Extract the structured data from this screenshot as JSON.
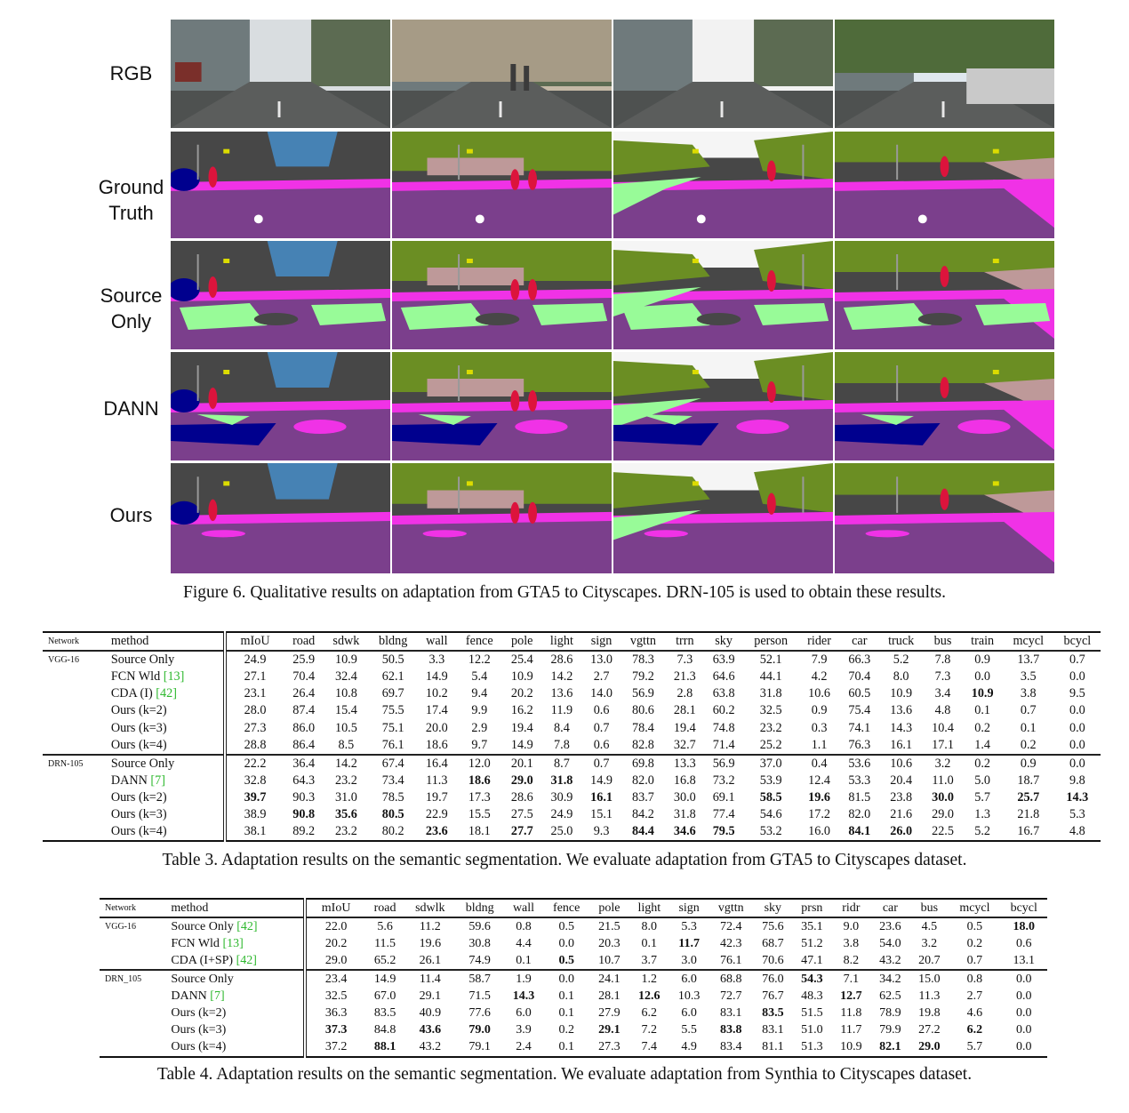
{
  "figure": {
    "row_labels": [
      [
        "RGB"
      ],
      [
        "Ground",
        "Truth"
      ],
      [
        "Source",
        "Only"
      ],
      [
        "DANN"
      ],
      [
        "Ours"
      ]
    ],
    "caption": "Figure 6. Qualitative results on adaptation from GTA5 to Cityscapes. DRN-105 is used to obtain these results.",
    "palette": {
      "road": "#7b3f8c",
      "sidewalk": "#f032e6",
      "building": "#474747",
      "vegetation": "#6b8e23",
      "sky": "#4682b4",
      "person": "#dc143c",
      "car": "#00008e",
      "terrain": "#98fb98",
      "fence": "#be9999",
      "pole": "#999999",
      "sign": "#dcdc00",
      "light": "#faaa1e"
    }
  },
  "table3": {
    "caption": "Table 3. Adaptation results on the semantic segmentation. We evaluate adaptation from GTA5 to Cityscapes dataset.",
    "headers": [
      "Network",
      "method",
      "mIoU",
      "road",
      "sdwk",
      "bldng",
      "wall",
      "fence",
      "pole",
      "light",
      "sign",
      "vgttn",
      "trrn",
      "sky",
      "person",
      "rider",
      "car",
      "truck",
      "bus",
      "train",
      "mcycl",
      "bcycl"
    ],
    "groups": [
      {
        "network": "VGG-16",
        "rows": [
          {
            "method": "Source Only",
            "cite": "",
            "values": [
              "24.9",
              "25.9",
              "10.9",
              "50.5",
              "3.3",
              "12.2",
              "25.4",
              "28.6",
              "13.0",
              "78.3",
              "7.3",
              "63.9",
              "52.1",
              "7.9",
              "66.3",
              "5.2",
              "7.8",
              "0.9",
              "13.7",
              "0.7"
            ],
            "bold": []
          },
          {
            "method": "FCN Wld ",
            "cite": "[13]",
            "values": [
              "27.1",
              "70.4",
              "32.4",
              "62.1",
              "14.9",
              "5.4",
              "10.9",
              "14.2",
              "2.7",
              "79.2",
              "21.3",
              "64.6",
              "44.1",
              "4.2",
              "70.4",
              "8.0",
              "7.3",
              "0.0",
              "3.5",
              "0.0"
            ],
            "bold": []
          },
          {
            "method": "CDA (I) ",
            "cite": "[42]",
            "values": [
              "23.1",
              "26.4",
              "10.8",
              "69.7",
              "10.2",
              "9.4",
              "20.2",
              "13.6",
              "14.0",
              "56.9",
              "2.8",
              "63.8",
              "31.8",
              "10.6",
              "60.5",
              "10.9",
              "3.4",
              "10.9",
              "3.8",
              "9.5"
            ],
            "bold": [
              17
            ]
          },
          {
            "method": "Ours (k=2)",
            "cite": "",
            "values": [
              "28.0",
              "87.4",
              "15.4",
              "75.5",
              "17.4",
              "9.9",
              "16.2",
              "11.9",
              "0.6",
              "80.6",
              "28.1",
              "60.2",
              "32.5",
              "0.9",
              "75.4",
              "13.6",
              "4.8",
              "0.1",
              "0.7",
              "0.0"
            ],
            "bold": []
          },
          {
            "method": "Ours (k=3)",
            "cite": "",
            "values": [
              "27.3",
              "86.0",
              "10.5",
              "75.1",
              "20.0",
              "2.9",
              "19.4",
              "8.4",
              "0.7",
              "78.4",
              "19.4",
              "74.8",
              "23.2",
              "0.3",
              "74.1",
              "14.3",
              "10.4",
              "0.2",
              "0.1",
              "0.0"
            ],
            "bold": []
          },
          {
            "method": "Ours (k=4)",
            "cite": "",
            "values": [
              "28.8",
              "86.4",
              "8.5",
              "76.1",
              "18.6",
              "9.7",
              "14.9",
              "7.8",
              "0.6",
              "82.8",
              "32.7",
              "71.4",
              "25.2",
              "1.1",
              "76.3",
              "16.1",
              "17.1",
              "1.4",
              "0.2",
              "0.0"
            ],
            "bold": []
          }
        ]
      },
      {
        "network": "DRN-105",
        "rows": [
          {
            "method": "Source Only",
            "cite": "",
            "values": [
              "22.2",
              "36.4",
              "14.2",
              "67.4",
              "16.4",
              "12.0",
              "20.1",
              "8.7",
              "0.7",
              "69.8",
              "13.3",
              "56.9",
              "37.0",
              "0.4",
              "53.6",
              "10.6",
              "3.2",
              "0.2",
              "0.9",
              "0.0"
            ],
            "bold": []
          },
          {
            "method": "DANN ",
            "cite": "[7]",
            "values": [
              "32.8",
              "64.3",
              "23.2",
              "73.4",
              "11.3",
              "18.6",
              "29.0",
              "31.8",
              "14.9",
              "82.0",
              "16.8",
              "73.2",
              "53.9",
              "12.4",
              "53.3",
              "20.4",
              "11.0",
              "5.0",
              "18.7",
              "9.8"
            ],
            "bold": [
              5,
              6,
              7
            ]
          },
          {
            "method": "Ours (k=2)",
            "cite": "",
            "values": [
              "39.7",
              "90.3",
              "31.0",
              "78.5",
              "19.7",
              "17.3",
              "28.6",
              "30.9",
              "16.1",
              "83.7",
              "30.0",
              "69.1",
              "58.5",
              "19.6",
              "81.5",
              "23.8",
              "30.0",
              "5.7",
              "25.7",
              "14.3"
            ],
            "bold": [
              0,
              8,
              12,
              13,
              16,
              18,
              19
            ]
          },
          {
            "method": "Ours (k=3)",
            "cite": "",
            "values": [
              "38.9",
              "90.8",
              "35.6",
              "80.5",
              "22.9",
              "15.5",
              "27.5",
              "24.9",
              "15.1",
              "84.2",
              "31.8",
              "77.4",
              "54.6",
              "17.2",
              "82.0",
              "21.6",
              "29.0",
              "1.3",
              "21.8",
              "5.3"
            ],
            "bold": [
              1,
              2,
              3
            ]
          },
          {
            "method": "Ours (k=4)",
            "cite": "",
            "values": [
              "38.1",
              "89.2",
              "23.2",
              "80.2",
              "23.6",
              "18.1",
              "27.7",
              "25.0",
              "9.3",
              "84.4",
              "34.6",
              "79.5",
              "53.2",
              "16.0",
              "84.1",
              "26.0",
              "22.5",
              "5.2",
              "16.7",
              "4.8"
            ],
            "bold": [
              4,
              6,
              9,
              10,
              11,
              14,
              15
            ]
          }
        ]
      }
    ]
  },
  "table4": {
    "caption": "Table 4. Adaptation results on the semantic segmentation. We evaluate adaptation from Synthia to Cityscapes dataset.",
    "headers": [
      "Network",
      "method",
      "mIoU",
      "road",
      "sdwlk",
      "bldng",
      "wall",
      "fence",
      "pole",
      "light",
      "sign",
      "vgttn",
      "sky",
      "prsn",
      "ridr",
      "car",
      "bus",
      "mcycl",
      "bcycl"
    ],
    "groups": [
      {
        "network": "VGG-16",
        "rows": [
          {
            "method": "Source Only ",
            "cite": "[42]",
            "values": [
              "22.0",
              "5.6",
              "11.2",
              "59.6",
              "0.8",
              "0.5",
              "21.5",
              "8.0",
              "5.3",
              "72.4",
              "75.6",
              "35.1",
              "9.0",
              "23.6",
              "4.5",
              "0.5",
              "18.0"
            ],
            "bold": [
              16
            ]
          },
          {
            "method": "FCN Wld ",
            "cite": "[13]",
            "values": [
              "20.2",
              "11.5",
              "19.6",
              "30.8",
              "4.4",
              "0.0",
              "20.3",
              "0.1",
              "11.7",
              "42.3",
              "68.7",
              "51.2",
              "3.8",
              "54.0",
              "3.2",
              "0.2",
              "0.6"
            ],
            "bold": [
              8
            ]
          },
          {
            "method": "CDA (I+SP) ",
            "cite": "[42]",
            "values": [
              "29.0",
              "65.2",
              "26.1",
              "74.9",
              "0.1",
              "0.5",
              "10.7",
              "3.7",
              "3.0",
              "76.1",
              "70.6",
              "47.1",
              "8.2",
              "43.2",
              "20.7",
              "0.7",
              "13.1"
            ],
            "bold": [
              5
            ]
          }
        ]
      },
      {
        "network": "DRN_105",
        "rows": [
          {
            "method": "Source Only",
            "cite": "",
            "values": [
              "23.4",
              "14.9",
              "11.4",
              "58.7",
              "1.9",
              "0.0",
              "24.1",
              "1.2",
              "6.0",
              "68.8",
              "76.0",
              "54.3",
              "7.1",
              "34.2",
              "15.0",
              "0.8",
              "0.0"
            ],
            "bold": [
              11
            ]
          },
          {
            "method": "DANN ",
            "cite": "[7]",
            "values": [
              "32.5",
              "67.0",
              "29.1",
              "71.5",
              "14.3",
              "0.1",
              "28.1",
              "12.6",
              "10.3",
              "72.7",
              "76.7",
              "48.3",
              "12.7",
              "62.5",
              "11.3",
              "2.7",
              "0.0"
            ],
            "bold": [
              4,
              7,
              12
            ]
          },
          {
            "method": "Ours (k=2)",
            "cite": "",
            "values": [
              "36.3",
              "83.5",
              "40.9",
              "77.6",
              "6.0",
              "0.1",
              "27.9",
              "6.2",
              "6.0",
              "83.1",
              "83.5",
              "51.5",
              "11.8",
              "78.9",
              "19.8",
              "4.6",
              "0.0"
            ],
            "bold": [
              10
            ]
          },
          {
            "method": "Ours (k=3)",
            "cite": "",
            "values": [
              "37.3",
              "84.8",
              "43.6",
              "79.0",
              "3.9",
              "0.2",
              "29.1",
              "7.2",
              "5.5",
              "83.8",
              "83.1",
              "51.0",
              "11.7",
              "79.9",
              "27.2",
              "6.2",
              "0.0"
            ],
            "bold": [
              0,
              2,
              3,
              6,
              9,
              15
            ]
          },
          {
            "method": "Ours (k=4)",
            "cite": "",
            "values": [
              "37.2",
              "88.1",
              "43.2",
              "79.1",
              "2.4",
              "0.1",
              "27.3",
              "7.4",
              "4.9",
              "83.4",
              "81.1",
              "51.3",
              "10.9",
              "82.1",
              "29.0",
              "5.7",
              "0.0"
            ],
            "bold": [
              1,
              13,
              14
            ]
          }
        ]
      }
    ]
  }
}
